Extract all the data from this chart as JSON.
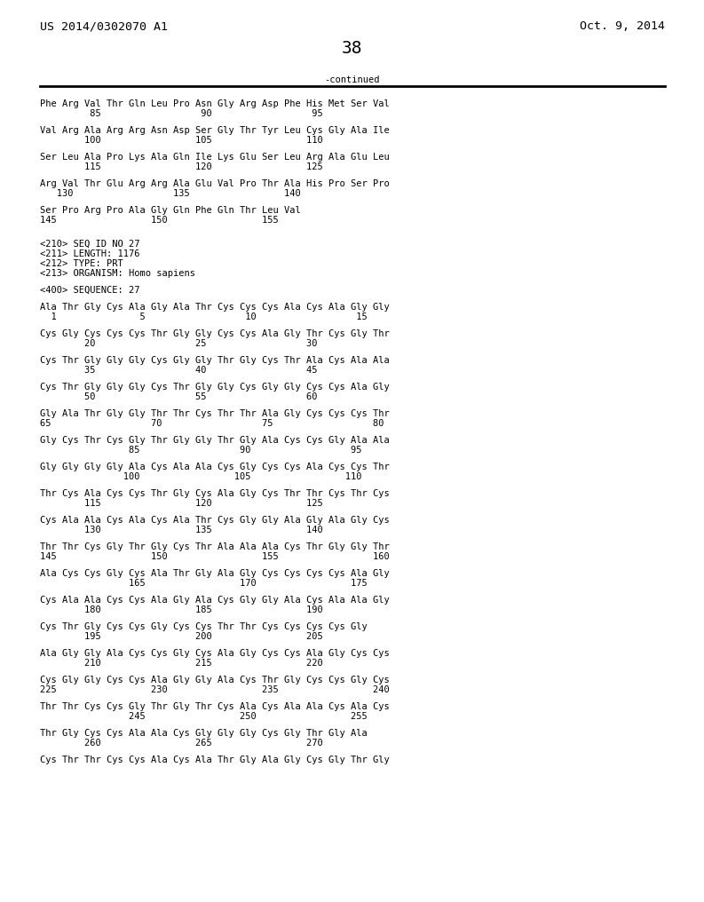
{
  "left_header": "US 2014/0302070 A1",
  "right_header": "Oct. 9, 2014",
  "page_number": "38",
  "continued_text": "-continued",
  "background_color": "#ffffff",
  "text_color": "#000000",
  "font_size": 7.5,
  "header_font_size": 9.5,
  "page_num_font_size": 14,
  "content": [
    "Phe Arg Val Thr Gln Leu Pro Asn Gly Arg Asp Phe His Met Ser Val",
    "         85                  90                  95",
    "",
    "Val Arg Ala Arg Arg Asn Asp Ser Gly Thr Tyr Leu Cys Gly Ala Ile",
    "        100                 105                 110",
    "",
    "Ser Leu Ala Pro Lys Ala Gln Ile Lys Glu Ser Leu Arg Ala Glu Leu",
    "        115                 120                 125",
    "",
    "Arg Val Thr Glu Arg Arg Ala Glu Val Pro Thr Ala His Pro Ser Pro",
    "   130                  135                 140",
    "",
    "Ser Pro Arg Pro Ala Gly Gln Phe Gln Thr Leu Val",
    "145                 150                 155",
    "",
    "",
    "<210> SEQ ID NO 27",
    "<211> LENGTH: 1176",
    "<212> TYPE: PRT",
    "<213> ORGANISM: Homo sapiens",
    "",
    "<400> SEQUENCE: 27",
    "",
    "Ala Thr Gly Cys Ala Gly Ala Thr Cys Cys Cys Ala Cys Ala Gly Gly",
    "  1               5                  10                  15",
    "",
    "Cys Gly Cys Cys Cys Thr Gly Gly Cys Cys Ala Gly Thr Cys Gly Thr",
    "        20                  25                  30",
    "",
    "Cys Thr Gly Gly Gly Cys Gly Gly Thr Gly Cys Thr Ala Cys Ala Ala",
    "        35                  40                  45",
    "",
    "Cys Thr Gly Gly Gly Cys Thr Gly Gly Cys Gly Gly Cys Cys Ala Gly",
    "        50                  55                  60",
    "",
    "Gly Ala Thr Gly Gly Thr Thr Cys Thr Thr Ala Gly Cys Cys Cys Thr",
    "65                  70                  75                  80",
    "",
    "Gly Cys Thr Cys Gly Thr Gly Gly Thr Gly Ala Cys Cys Gly Ala Ala",
    "                85                  90                  95",
    "",
    "Gly Gly Gly Gly Ala Cys Ala Ala Cys Gly Cys Cys Ala Cys Cys Thr",
    "               100                 105                 110",
    "",
    "Thr Cys Ala Cys Cys Thr Gly Cys Ala Gly Cys Thr Thr Cys Thr Cys",
    "        115                 120                 125",
    "",
    "Cys Ala Ala Cys Ala Cys Ala Thr Cys Gly Gly Ala Gly Ala Gly Cys",
    "        130                 135                 140",
    "",
    "Thr Thr Cys Gly Thr Gly Cys Thr Ala Ala Ala Cys Thr Gly Gly Thr",
    "145                 150                 155                 160",
    "",
    "Ala Cys Cys Gly Cys Ala Thr Gly Ala Gly Cys Cys Cys Cys Ala Gly",
    "                165                 170                 175",
    "",
    "Cys Ala Ala Cys Cys Ala Gly Ala Cys Gly Gly Ala Cys Ala Ala Gly",
    "        180                 185                 190",
    "",
    "Cys Thr Gly Cys Cys Gly Cys Cys Thr Thr Cys Cys Cys Cys Gly",
    "        195                 200                 205",
    "",
    "Ala Gly Gly Ala Cys Cys Gly Cys Ala Gly Cys Cys Ala Gly Cys Cys",
    "        210                 215                 220",
    "",
    "Cys Gly Gly Cys Cys Ala Gly Gly Ala Cys Thr Gly Cys Cys Gly Cys",
    "225                 230                 235                 240",
    "",
    "Thr Thr Cys Cys Gly Thr Gly Thr Cys Ala Cys Ala Ala Cys Ala Cys",
    "                245                 250                 255",
    "",
    "Thr Gly Cys Cys Ala Ala Cys Gly Gly Gly Cys Gly Thr Gly Ala",
    "        260                 265                 270",
    "",
    "Cys Thr Thr Cys Cys Ala Cys Ala Thr Gly Ala Gly Cys Gly Thr Gly"
  ]
}
